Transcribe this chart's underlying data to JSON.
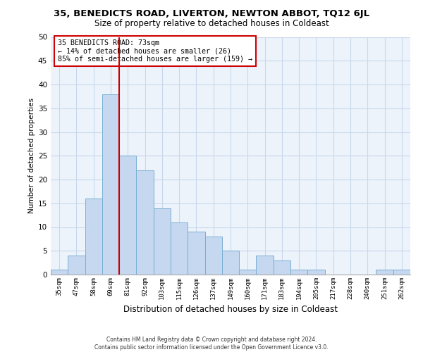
{
  "title": "35, BENEDICTS ROAD, LIVERTON, NEWTON ABBOT, TQ12 6JL",
  "subtitle": "Size of property relative to detached houses in Coldeast",
  "xlabel": "Distribution of detached houses by size in Coldeast",
  "ylabel": "Number of detached properties",
  "bar_labels": [
    "35sqm",
    "47sqm",
    "58sqm",
    "69sqm",
    "81sqm",
    "92sqm",
    "103sqm",
    "115sqm",
    "126sqm",
    "137sqm",
    "149sqm",
    "160sqm",
    "171sqm",
    "183sqm",
    "194sqm",
    "205sqm",
    "217sqm",
    "228sqm",
    "240sqm",
    "251sqm",
    "262sqm"
  ],
  "bar_values": [
    1,
    4,
    16,
    38,
    25,
    22,
    14,
    11,
    9,
    8,
    5,
    1,
    4,
    3,
    1,
    1,
    0,
    0,
    0,
    1,
    1
  ],
  "bar_color": "#c5d8ef",
  "bar_edge_color": "#7aafd4",
  "ylim": [
    0,
    50
  ],
  "yticks": [
    0,
    5,
    10,
    15,
    20,
    25,
    30,
    35,
    40,
    45,
    50
  ],
  "vline_x": 3.5,
  "vline_color": "#cc0000",
  "annotation_title": "35 BENEDICTS ROAD: 73sqm",
  "annotation_line1": "← 14% of detached houses are smaller (26)",
  "annotation_line2": "85% of semi-detached houses are larger (159) →",
  "annotation_box_color": "#ffffff",
  "annotation_box_edge": "#cc0000",
  "footer1": "Contains HM Land Registry data © Crown copyright and database right 2024.",
  "footer2": "Contains public sector information licensed under the Open Government Licence v3.0.",
  "bg_color": "#ffffff",
  "grid_color": "#c8d8ec",
  "plot_bg_color": "#edf3fa"
}
